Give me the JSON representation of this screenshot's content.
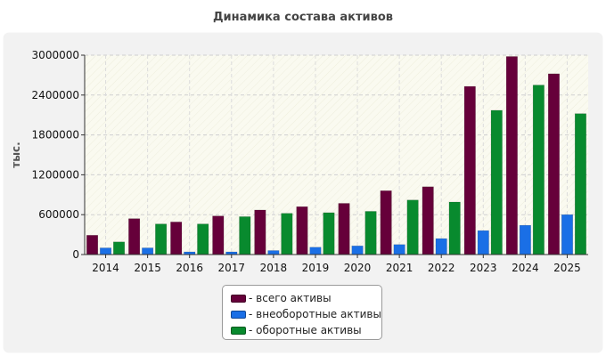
{
  "chart_data": {
    "type": "bar",
    "title": "Динамика состава активов",
    "ylabel": "тыс.",
    "xlabel": "",
    "ylim": [
      0,
      3000000
    ],
    "yticks": [
      "0",
      "600000",
      "1200000",
      "1800000",
      "2400000",
      "3000000"
    ],
    "categories": [
      "2014",
      "2015",
      "2016",
      "2017",
      "2018",
      "2019",
      "2020",
      "2021",
      "2022",
      "2023",
      "2024",
      "2025"
    ],
    "series": [
      {
        "name": "- всего активы",
        "color": "#66003a",
        "values": [
          290000,
          540000,
          490000,
          580000,
          670000,
          720000,
          770000,
          960000,
          1020000,
          2530000,
          2980000,
          2720000
        ]
      },
      {
        "name": "- внеоборотные активы",
        "color": "#1a6fe6",
        "values": [
          100000,
          100000,
          40000,
          40000,
          60000,
          110000,
          130000,
          150000,
          240000,
          360000,
          440000,
          600000
        ]
      },
      {
        "name": "- оборотные активы",
        "color": "#088a2e",
        "values": [
          190000,
          460000,
          460000,
          570000,
          620000,
          630000,
          650000,
          820000,
          790000,
          2170000,
          2550000,
          2120000
        ]
      }
    ],
    "grid": true,
    "legend_position": "bottom-center"
  }
}
